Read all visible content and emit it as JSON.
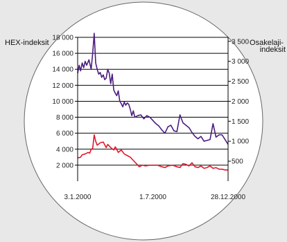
{
  "chart_data": {
    "type": "line",
    "left_axis_title": "HEX-indeksit",
    "right_axis_title": [
      "Osakelaji-",
      "indeksit"
    ],
    "left_ylim": [
      0,
      18000
    ],
    "right_ylim": [
      0,
      3600
    ],
    "left_yticks": [
      2000,
      4000,
      6000,
      8000,
      10000,
      12000,
      14000,
      16000,
      18000
    ],
    "left_ytick_labels": [
      "2 000",
      "4 000",
      "6 000",
      "8 000",
      "10 000",
      "12 000",
      "14 000",
      "16 000",
      "18 000"
    ],
    "right_yticks": [
      500,
      1000,
      1500,
      2000,
      2500,
      3000,
      3500
    ],
    "right_ytick_labels": [
      "500",
      "1 000",
      "1 500",
      "2 000",
      "2 500",
      "3 000",
      "3 500"
    ],
    "x_tick_labels": [
      "3.1.2000",
      "1.7.2000",
      "28.12.2000"
    ],
    "x_tick_positions": [
      0,
      0.5,
      1
    ],
    "grid": true,
    "colors": {
      "background": "#e8e8e8",
      "circle_fill": "#ffffff",
      "circle_stroke": "#666666",
      "grid": "#000000",
      "series_purple": "#4b1c7e",
      "series_red": "#e0182d"
    },
    "series": [
      {
        "axis": "left",
        "color": "#4b1c7e",
        "x": [
          0,
          0.01,
          0.02,
          0.03,
          0.04,
          0.05,
          0.06,
          0.075,
          0.09,
          0.1,
          0.11,
          0.12,
          0.13,
          0.14,
          0.15,
          0.16,
          0.17,
          0.18,
          0.19,
          0.2,
          0.21,
          0.22,
          0.23,
          0.24,
          0.25,
          0.26,
          0.27,
          0.28,
          0.29,
          0.3,
          0.31,
          0.32,
          0.33,
          0.34,
          0.35,
          0.36,
          0.37,
          0.38,
          0.4,
          0.42,
          0.44,
          0.46,
          0.48,
          0.5,
          0.52,
          0.54,
          0.56,
          0.58,
          0.6,
          0.62,
          0.64,
          0.66,
          0.68,
          0.7,
          0.72,
          0.74,
          0.76,
          0.78,
          0.8,
          0.82,
          0.84,
          0.86,
          0.88,
          0.9,
          0.92,
          0.94,
          0.96,
          0.98,
          1.0
        ],
        "values": [
          13500,
          14500,
          13800,
          14800,
          14200,
          15000,
          14500,
          15200,
          14000,
          16000,
          18500,
          14800,
          14000,
          13400,
          13600,
          13000,
          13300,
          12700,
          12900,
          14000,
          13500,
          12200,
          13400,
          11400,
          11000,
          10700,
          11300,
          10000,
          9700,
          9300,
          9900,
          9500,
          9800,
          9600,
          9000,
          8200,
          8800,
          8000,
          8200,
          8300,
          7800,
          8200,
          8000,
          7600,
          7200,
          6900,
          6400,
          6000,
          6800,
          7000,
          6300,
          6200,
          8300,
          7300,
          7000,
          6700,
          6100,
          5600,
          5300,
          5600,
          5000,
          5100,
          5200,
          7200,
          5500,
          5800,
          5800,
          5200,
          4600
        ]
      },
      {
        "axis": "left",
        "color": "#e0182d",
        "x": [
          0,
          0.02,
          0.03,
          0.05,
          0.07,
          0.08,
          0.09,
          0.1,
          0.11,
          0.12,
          0.13,
          0.15,
          0.17,
          0.19,
          0.2,
          0.22,
          0.24,
          0.25,
          0.27,
          0.29,
          0.31,
          0.33,
          0.35,
          0.37,
          0.39,
          0.41,
          0.43,
          0.45,
          0.48,
          0.5,
          0.53,
          0.56,
          0.58,
          0.6,
          0.63,
          0.66,
          0.68,
          0.7,
          0.72,
          0.74,
          0.76,
          0.78,
          0.8,
          0.82,
          0.84,
          0.86,
          0.88,
          0.9,
          0.92,
          0.94,
          0.96,
          0.98,
          1.0
        ],
        "values": [
          2900,
          3000,
          3300,
          3400,
          3600,
          3500,
          4000,
          4100,
          5800,
          5000,
          4500,
          4800,
          4900,
          4200,
          4600,
          4200,
          3900,
          4300,
          3600,
          3900,
          3400,
          3200,
          3000,
          2600,
          2200,
          1800,
          2000,
          1900,
          2000,
          2000,
          2000,
          1800,
          1700,
          1900,
          2000,
          1800,
          1700,
          2200,
          2100,
          1900,
          2300,
          1800,
          1700,
          1900,
          1600,
          1700,
          1900,
          1600,
          1700,
          1500,
          1500,
          1400,
          1400
        ]
      }
    ]
  }
}
